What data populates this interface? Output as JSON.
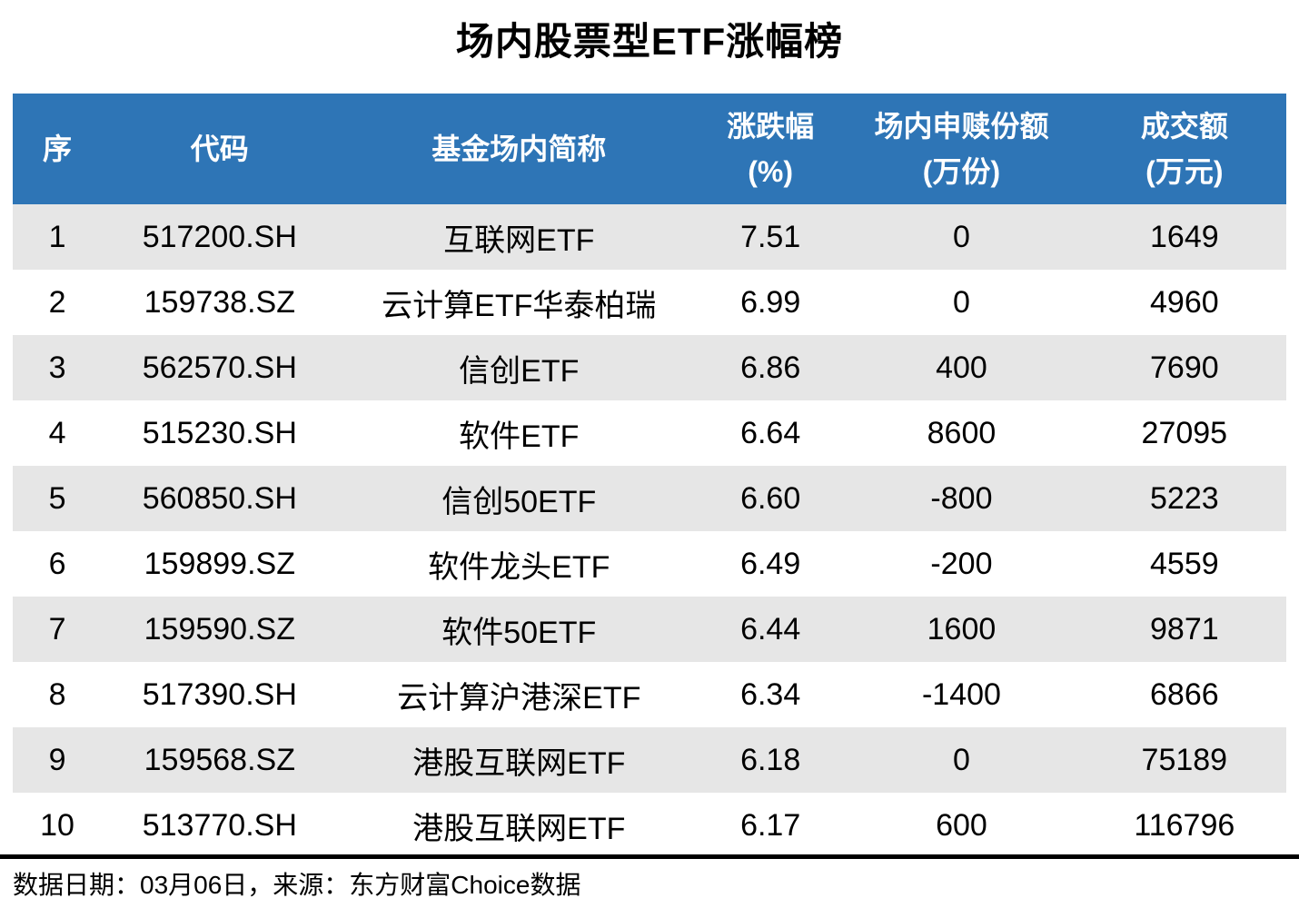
{
  "title": "场内股票型ETF涨幅榜",
  "footer": {
    "source_line": "数据日期：03月06日，来源：东方财富Choice数据"
  },
  "colors": {
    "header_bg": "#2E75B6",
    "header_text": "#FFFFFF",
    "row_alt_bg": "#E6E6E6",
    "row_bg": "#FFFFFF",
    "title_text": "#000000",
    "rule": "#000000"
  },
  "chart_data": {
    "type": "table",
    "title": "场内股票型ETF涨幅榜",
    "columns": [
      {
        "id": "rank",
        "line1": "序",
        "line2": ""
      },
      {
        "id": "code",
        "line1": "代码",
        "line2": ""
      },
      {
        "id": "name",
        "line1": "基金场内简称",
        "line2": ""
      },
      {
        "id": "change",
        "line1": "涨跌幅",
        "line2": "(%)"
      },
      {
        "id": "shares",
        "line1": "场内申赎份额",
        "line2": "(万份)"
      },
      {
        "id": "turnover",
        "line1": "成交额",
        "line2": "(万元)"
      }
    ],
    "rows": [
      [
        "1",
        "517200.SH",
        "互联网ETF",
        "7.51",
        "0",
        "1649"
      ],
      [
        "2",
        "159738.SZ",
        "云计算ETF华泰柏瑞",
        "6.99",
        "0",
        "4960"
      ],
      [
        "3",
        "562570.SH",
        "信创ETF",
        "6.86",
        "400",
        "7690"
      ],
      [
        "4",
        "515230.SH",
        "软件ETF",
        "6.64",
        "8600",
        "27095"
      ],
      [
        "5",
        "560850.SH",
        "信创50ETF",
        "6.60",
        "-800",
        "5223"
      ],
      [
        "6",
        "159899.SZ",
        "软件龙头ETF",
        "6.49",
        "-200",
        "4559"
      ],
      [
        "7",
        "159590.SZ",
        "软件50ETF",
        "6.44",
        "1600",
        "9871"
      ],
      [
        "8",
        "517390.SH",
        "云计算沪港深ETF",
        "6.34",
        "-1400",
        "6866"
      ],
      [
        "9",
        "159568.SZ",
        "港股互联网ETF",
        "6.18",
        "0",
        "75189"
      ],
      [
        "10",
        "513770.SH",
        "港股互联网ETF",
        "6.17",
        "600",
        "116796"
      ]
    ]
  }
}
